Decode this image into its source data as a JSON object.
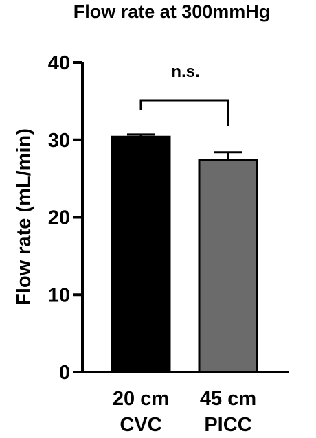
{
  "chart_data": {
    "type": "bar",
    "title": "Flow rate at 300mmHg",
    "ylabel": "Flow rate (mL/min)",
    "xlabel": "",
    "ylim": [
      0,
      40
    ],
    "yticks": [
      "0",
      "10",
      "20",
      "30",
      "40"
    ],
    "categories": [
      {
        "line1": "20 cm",
        "line2": "CVC"
      },
      {
        "line1": "45 cm",
        "line2": "PICC"
      }
    ],
    "values": [
      30.4,
      27.4
    ],
    "errors": [
      0.3,
      1.0
    ],
    "colors": [
      "#000000",
      "#6b6b6b"
    ],
    "annotation": "n.s.",
    "grid": false
  }
}
